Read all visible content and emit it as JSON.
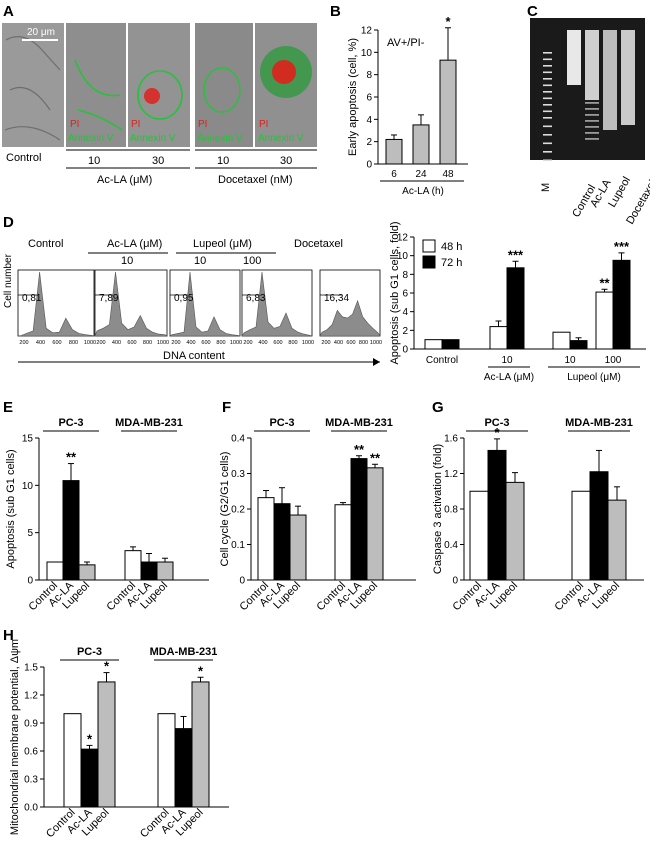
{
  "figure_title": "Apoptosis and cell cycle effects of Ac-LA, Lupeol and Docetaxel",
  "colors": {
    "white_bar": "#ffffff",
    "black_bar": "#000000",
    "gray_bar": "#bdbdbd",
    "histogram": "#8c8c8c",
    "pi_red": "#e0201b",
    "annexin_green": "#26c23a",
    "gel_bg": "#1a1a1a"
  },
  "panel_labels": {
    "A": "A",
    "B": "B",
    "C": "C",
    "D": "D",
    "E": "E",
    "F": "F",
    "G": "G",
    "H": "H"
  },
  "panelA": {
    "scale_bar": "20 μm",
    "stain_pi": "PI",
    "stain_annexin": "Annexin V",
    "label_control": "Control",
    "doses": [
      "10",
      "30",
      "10",
      "30"
    ],
    "group_aclag": "Ac-LA (μM)",
    "group_doce": "Docetaxel (nM)"
  },
  "panelC": {
    "lanes": [
      "M",
      "Control",
      "Ac-LA",
      "Lupeol",
      "Docetaxel"
    ]
  },
  "panelD_hist": {
    "titles": [
      "Control",
      "Ac-LA (μM)",
      "Lupeol  (μM)",
      "Docetaxel"
    ],
    "doses": [
      "10",
      "10",
      "100"
    ],
    "percentages": [
      "0,81",
      "7,89",
      "0,95",
      "6,83",
      "16,34"
    ],
    "ylabel": "Cell number",
    "xlabel": "DNA content",
    "xticks": [
      "200",
      "400",
      "600",
      "800",
      "1000"
    ]
  },
  "chart_data": [
    {
      "id": "B",
      "type": "bar",
      "title": "AV+/PI-",
      "ylabel": "Early apoptosis (cell, %)",
      "xlabel": "Ac-LA (h)",
      "categories": [
        "6",
        "24",
        "48"
      ],
      "ylim": [
        0,
        12
      ],
      "yticks": [
        0,
        2,
        4,
        6,
        8,
        10,
        12
      ],
      "series": [
        {
          "name": "AV+/PI-",
          "values": [
            2.2,
            3.5,
            9.3
          ],
          "errors": [
            0.4,
            0.9,
            2.9
          ]
        }
      ],
      "stars": [
        "",
        "",
        "*"
      ]
    },
    {
      "id": "D",
      "type": "bar",
      "ylabel": "Apoptosis (sub G1 cells, fold)",
      "categories": [
        "Control",
        "10",
        "10",
        "100"
      ],
      "group_labels": [
        "Ac-LA (μM)",
        "Lupeol  (μM)"
      ],
      "legend": [
        "48 h",
        "72 h"
      ],
      "ylim": [
        0,
        12
      ],
      "yticks": [
        0,
        2,
        4,
        6,
        8,
        10,
        12
      ],
      "series": [
        {
          "name": "48 h",
          "values": [
            1.0,
            2.4,
            1.8,
            6.1
          ],
          "errors": [
            0,
            0.6,
            0,
            0.3
          ]
        },
        {
          "name": "72 h",
          "values": [
            1.0,
            8.7,
            0.9,
            9.5
          ],
          "errors": [
            0,
            0.7,
            0.3,
            0.8
          ]
        }
      ],
      "stars": [
        [
          "",
          "",
          "",
          "**"
        ],
        [
          "",
          "***",
          "",
          "***"
        ]
      ]
    },
    {
      "id": "E",
      "type": "bar",
      "ylabel": "Apoptosis (sub G1 cells)",
      "groups": [
        "PC-3",
        "MDA-MB-231"
      ],
      "categories": [
        "Control",
        "Ac-LA",
        "Lupeol"
      ],
      "ylim": [
        0,
        15
      ],
      "yticks": [
        0,
        5,
        10,
        15
      ],
      "series": [
        {
          "name": "PC-3",
          "values": [
            1.9,
            10.5,
            1.6
          ],
          "errors": [
            0,
            1.8,
            0.3
          ]
        },
        {
          "name": "MDA-MB-231",
          "values": [
            3.1,
            1.9,
            1.9
          ],
          "errors": [
            0.4,
            0.9,
            0.4
          ]
        }
      ],
      "stars": [
        "",
        "**",
        "",
        "",
        "",
        ""
      ]
    },
    {
      "id": "F",
      "type": "bar",
      "ylabel": "Cell cycle (G2/G1 cells)",
      "groups": [
        "PC-3",
        "MDA-MB-231"
      ],
      "categories": [
        "Control",
        "Ac-LA",
        "Lupeol"
      ],
      "ylim": [
        0,
        0.4
      ],
      "yticks": [
        0,
        0.1,
        0.2,
        0.3,
        0.4
      ],
      "series": [
        {
          "name": "PC-3",
          "values": [
            0.232,
            0.215,
            0.183
          ],
          "errors": [
            0.02,
            0.045,
            0.025
          ]
        },
        {
          "name": "MDA-MB-231",
          "values": [
            0.212,
            0.342,
            0.316
          ],
          "errors": [
            0.006,
            0.008,
            0.01
          ]
        }
      ],
      "stars": [
        "",
        "",
        "",
        "",
        "**",
        "**"
      ]
    },
    {
      "id": "G",
      "type": "bar",
      "ylabel": "Caspase 3 activation (fold)",
      "groups": [
        "PC-3",
        "MDA-MB-231"
      ],
      "categories": [
        "Control",
        "Ac-LA",
        "Lupeol"
      ],
      "ylim": [
        0,
        1.6
      ],
      "yticks": [
        0,
        0.4,
        0.8,
        1.2,
        1.6
      ],
      "series": [
        {
          "name": "PC-3",
          "values": [
            1.0,
            1.46,
            1.1
          ],
          "errors": [
            0,
            0.13,
            0.11
          ]
        },
        {
          "name": "MDA-MB-231",
          "values": [
            1.0,
            1.22,
            0.9
          ],
          "errors": [
            0,
            0.24,
            0.15
          ]
        }
      ],
      "stars": [
        "",
        "*",
        "",
        "",
        "",
        ""
      ]
    },
    {
      "id": "H",
      "type": "bar",
      "ylabel": "Mitochondrial membrane potential, Δψm",
      "groups": [
        "PC-3",
        "MDA-MB-231"
      ],
      "categories": [
        "Control",
        "Ac-LA",
        "Lupeol"
      ],
      "ylim": [
        0,
        1.5
      ],
      "yticks": [
        "0.0",
        "0.3",
        "0.6",
        "0.9",
        "1.2",
        "1.5"
      ],
      "series": [
        {
          "name": "PC-3",
          "values": [
            1.0,
            0.62,
            1.34
          ],
          "errors": [
            0,
            0.04,
            0.1
          ]
        },
        {
          "name": "MDA-MB-231",
          "values": [
            1.0,
            0.84,
            1.34
          ],
          "errors": [
            0,
            0.13,
            0.05
          ]
        }
      ],
      "stars": [
        "",
        "*",
        "*",
        "",
        "",
        "*"
      ]
    }
  ]
}
